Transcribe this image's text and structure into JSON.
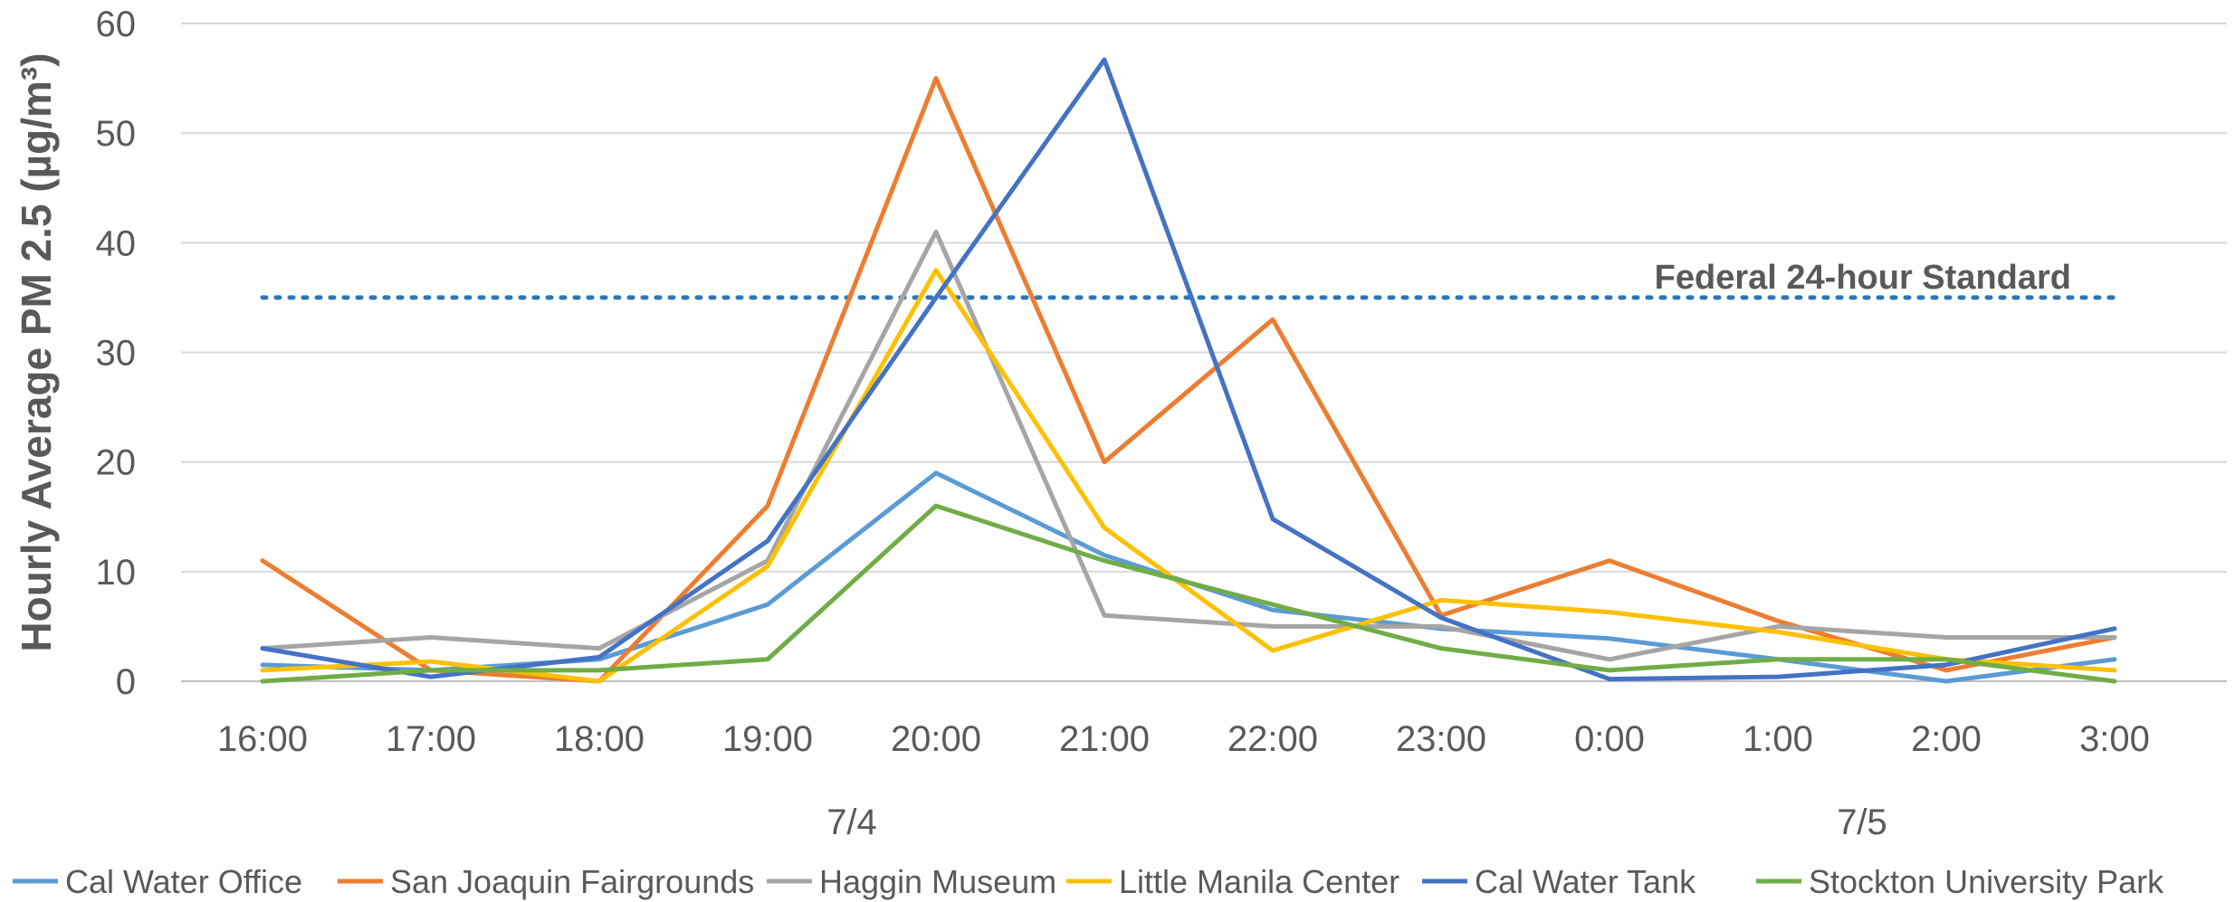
{
  "chart_data": {
    "type": "line",
    "x": [
      "16:00",
      "17:00",
      "18:00",
      "19:00",
      "20:00",
      "21:00",
      "22:00",
      "23:00",
      "0:00",
      "1:00",
      "2:00",
      "3:00"
    ],
    "date_labels": [
      "7/4",
      "7/5"
    ],
    "ylabel": "Hourly Average PM 2.5 (µg/m³)",
    "ylim": [
      0,
      60
    ],
    "yticks": [
      0,
      10,
      20,
      30,
      40,
      50,
      60
    ],
    "grid": "horizontal",
    "legend_position": "bottom",
    "reference_line": {
      "value": 35,
      "label": "Federal 24-hour Standard",
      "color": "#2E75B6",
      "style": "dotted"
    },
    "series": [
      {
        "name": "Cal Water Office",
        "color": "#5B9BD5",
        "values": [
          1.5,
          1,
          2,
          7,
          19,
          11.5,
          6.5,
          4.8,
          3.9,
          2,
          0,
          2
        ]
      },
      {
        "name": "San Joaquin Fairgrounds",
        "color": "#ED7D31",
        "values": [
          11,
          1,
          0,
          16,
          55,
          20,
          33,
          6,
          11,
          5.5,
          1,
          4
        ]
      },
      {
        "name": "Haggin Museum",
        "color": "#A5A5A5",
        "values": [
          3,
          4,
          3,
          11,
          41,
          6,
          5,
          5,
          2,
          5,
          4,
          4
        ]
      },
      {
        "name": "Little Manila Center",
        "color": "#FFC000",
        "values": [
          1,
          1.8,
          0,
          10.5,
          37.5,
          14,
          2.8,
          7.4,
          6.3,
          4.5,
          2,
          1
        ]
      },
      {
        "name": "Cal Water Tank",
        "color": "#4472C4",
        "values": [
          3,
          0.4,
          2.2,
          12.8,
          35,
          56.7,
          14.8,
          5.8,
          0.2,
          0.4,
          1.5,
          4.8
        ]
      },
      {
        "name": "Stockton University Park",
        "color": "#70AD47",
        "values": [
          0,
          1,
          1,
          2,
          16,
          11,
          7,
          3,
          1,
          2,
          2,
          0
        ]
      }
    ]
  }
}
